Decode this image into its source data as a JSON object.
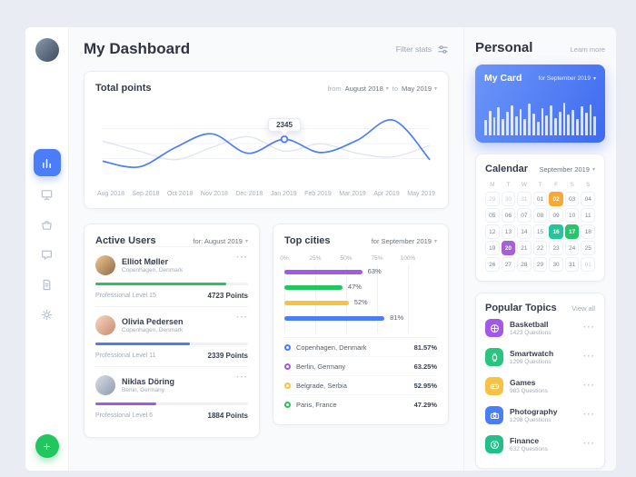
{
  "icons": {
    "caret": "▾",
    "dots": "···",
    "plus": "+",
    "dollar": "$"
  },
  "header": {
    "title": "My Dashboard",
    "filter_label": "Filter stats"
  },
  "total_points": {
    "title": "Total points",
    "from_label": "from",
    "from_value": "August 2018",
    "to_label": "to",
    "to_value": "May 2019",
    "months": [
      "Aug 2018",
      "Sep 2018",
      "Oct 2018",
      "Nov 2018",
      "Dec 2018",
      "Jan 2019",
      "Feb 2019",
      "Mar 2019",
      "Apr 2019",
      "May 2019"
    ],
    "series": [
      {
        "name": "current",
        "color": "#4a7df7",
        "values": [
          2040,
          1960,
          2230,
          2420,
          2150,
          2345,
          2160,
          2330,
          2610,
          2060
        ]
      },
      {
        "name": "previous",
        "color": "#dfe4ec",
        "values": [
          2320,
          2180,
          2060,
          2230,
          2380,
          2180,
          2280,
          2150,
          2100,
          2260
        ]
      }
    ],
    "tooltip": {
      "value": "2345",
      "month_index": 5
    }
  },
  "active_users": {
    "title": "Active Users",
    "period": "for: August 2019",
    "users": [
      {
        "name": "Elliot Møller",
        "location": "Copenhagen, Denmark",
        "level": "Professional Level 15",
        "points": "4723 Points",
        "progress": 86,
        "color": "#22c55e",
        "avatar": [
          "#f3c88b",
          "#8a6a4f"
        ]
      },
      {
        "name": "Olivia Pedersen",
        "location": "Copenhagen, Denmark",
        "level": "Professional Level 11",
        "points": "2339 Points",
        "progress": 62,
        "color": "#4a7df7",
        "avatar": [
          "#f7d6c4",
          "#c98a6b"
        ]
      },
      {
        "name": "Niklas Döring",
        "location": "Berlin, Germany",
        "level": "Professional Level 6",
        "points": "1884 Points",
        "progress": 40,
        "color": "#a259e8",
        "avatar": [
          "#d8dee8",
          "#8d99ab"
        ]
      }
    ]
  },
  "top_cities": {
    "title": "Top cities",
    "period": "for September 2019",
    "axis": [
      "0%",
      "25%",
      "50%",
      "75%",
      "100%"
    ],
    "bars": [
      {
        "value": 63,
        "label": "63%",
        "color": "#a259e8"
      },
      {
        "value": 47,
        "label": "47%",
        "color": "#22c55e"
      },
      {
        "value": 52,
        "label": "52%",
        "color": "#f6c243"
      },
      {
        "value": 81,
        "label": "81%",
        "color": "#4a7df7"
      }
    ],
    "legend": [
      {
        "city": "Copenhagen, Denmark",
        "value": "81.57%",
        "color": "#4a7df7"
      },
      {
        "city": "Berlin, Germany",
        "value": "63.25%",
        "color": "#a259e8"
      },
      {
        "city": "Belgrade, Serbia",
        "value": "52.95%",
        "color": "#f6c243"
      },
      {
        "city": "Paris, France",
        "value": "47.29%",
        "color": "#22c55e"
      }
    ]
  },
  "personal": {
    "title": "Personal",
    "learn_more": "Learn more"
  },
  "my_card": {
    "title": "My Card",
    "period": "for September 2019",
    "bar_values": [
      38,
      62,
      45,
      70,
      40,
      58,
      75,
      48,
      66,
      42,
      80,
      55,
      35,
      68,
      50,
      74,
      44,
      60,
      82,
      52,
      64,
      40,
      72,
      56,
      78,
      48
    ]
  },
  "calendar": {
    "title": "Calendar",
    "period": "September 2019",
    "weekdays": [
      "M",
      "T",
      "W",
      "T",
      "F",
      "S",
      "S"
    ],
    "cells": [
      {
        "d": "29",
        "muted": true
      },
      {
        "d": "30",
        "muted": true
      },
      {
        "d": "31",
        "muted": true
      },
      {
        "d": "01"
      },
      {
        "d": "02",
        "hl": "#f7a934"
      },
      {
        "d": "03"
      },
      {
        "d": "04"
      },
      {
        "d": "05"
      },
      {
        "d": "06"
      },
      {
        "d": "07"
      },
      {
        "d": "08"
      },
      {
        "d": "09"
      },
      {
        "d": "10"
      },
      {
        "d": "11"
      },
      {
        "d": "12"
      },
      {
        "d": "13"
      },
      {
        "d": "14"
      },
      {
        "d": "15"
      },
      {
        "d": "16",
        "hl": "#1fc79b"
      },
      {
        "d": "17",
        "hl": "#27c46d"
      },
      {
        "d": "18"
      },
      {
        "d": "19"
      },
      {
        "d": "20",
        "hl": "#a461d8"
      },
      {
        "d": "21"
      },
      {
        "d": "22"
      },
      {
        "d": "23"
      },
      {
        "d": "24"
      },
      {
        "d": "25"
      },
      {
        "d": "26"
      },
      {
        "d": "27"
      },
      {
        "d": "28"
      },
      {
        "d": "29"
      },
      {
        "d": "30"
      },
      {
        "d": "31"
      },
      {
        "d": "01",
        "muted": true
      }
    ]
  },
  "popular_topics": {
    "title": "Popular Topics",
    "view_all": "View all",
    "topics": [
      {
        "name": "Basketball",
        "count": "1423 Questions",
        "color": "#a259e8"
      },
      {
        "name": "Smartwatch",
        "count": "1299 Questions",
        "color": "#26c681"
      },
      {
        "name": "Games",
        "count": "983 Questions",
        "color": "#f6c243"
      },
      {
        "name": "Photography",
        "count": "1298 Questions",
        "color": "#4a7df7"
      },
      {
        "name": "Finance",
        "count": "632 Questions",
        "color": "#21c08b"
      }
    ]
  }
}
